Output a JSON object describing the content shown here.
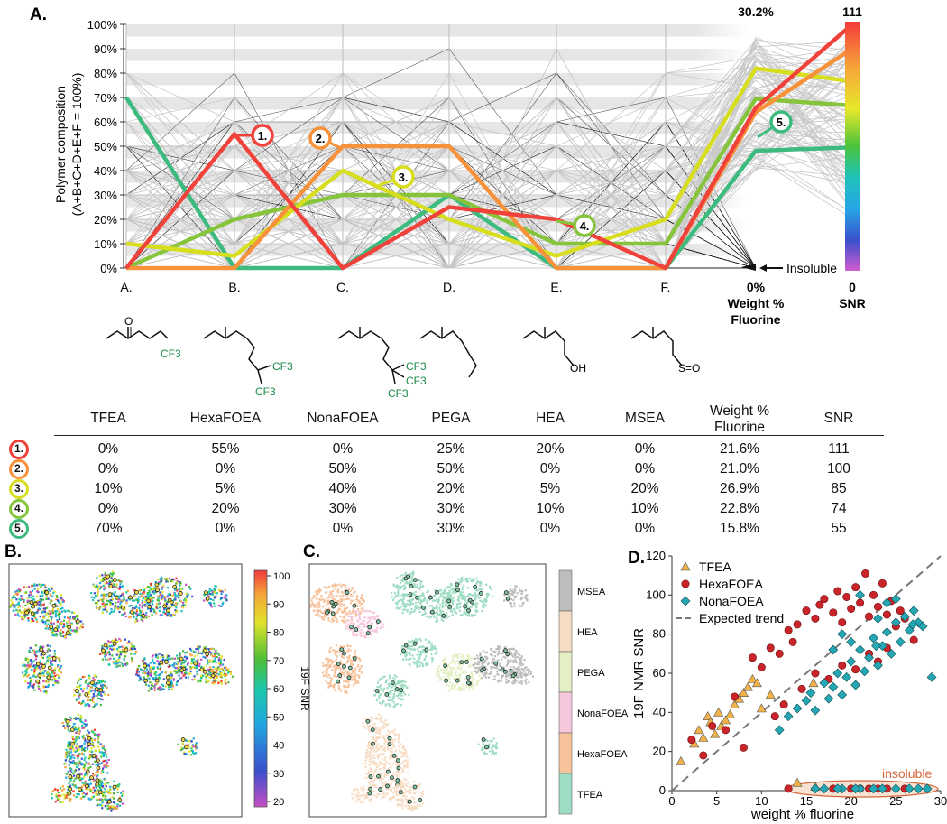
{
  "panel_labels": [
    "A.",
    "B.",
    "C.",
    "D."
  ],
  "chart_data": [
    {
      "type": "parallel-coordinates",
      "panel": "A.",
      "ylabel_line1": "Polymer composition",
      "ylabel_line2": "(A+B+C+D+E+F = 100%)",
      "yticks": [
        "0%",
        "10%",
        "20%",
        "30%",
        "40%",
        "50%",
        "60%",
        "70%",
        "80%",
        "90%",
        "100%"
      ],
      "axes": [
        {
          "label": "A.",
          "monomer": "TFEA"
        },
        {
          "label": "B.",
          "monomer": "HexaFOEA"
        },
        {
          "label": "C.",
          "monomer": "NonaFOEA"
        },
        {
          "label": "D.",
          "monomer": "PEGA"
        },
        {
          "label": "E.",
          "monomer": "HEA"
        },
        {
          "label": "F.",
          "monomer": "MSEA"
        },
        {
          "label": "Weight % Fluorine",
          "min": "0%",
          "max": "30.2%"
        },
        {
          "label": "SNR",
          "min": "0",
          "max": "111"
        }
      ],
      "wf_axis_label_line1": "Weight %",
      "wf_axis_label_line2": "Fluorine",
      "wf_axis_min": "0%",
      "wf_axis_max": "30.2%",
      "snr_axis_label": "SNR",
      "snr_axis_min": "0",
      "snr_axis_max": "111",
      "insoluble_label": "Insoluble",
      "highlighted": [
        {
          "id": "1.",
          "color": "#f0423a",
          "values": [
            0,
            55,
            0,
            25,
            20,
            0,
            21.6,
            111
          ]
        },
        {
          "id": "2.",
          "color": "#f7913a",
          "values": [
            0,
            0,
            50,
            50,
            0,
            0,
            21.0,
            100
          ]
        },
        {
          "id": "3.",
          "color": "#d7de1e",
          "values": [
            10,
            5,
            40,
            20,
            5,
            20,
            26.9,
            85
          ]
        },
        {
          "id": "4.",
          "color": "#86c43c",
          "values": [
            0,
            20,
            30,
            30,
            10,
            10,
            22.8,
            74
          ]
        },
        {
          "id": "5.",
          "color": "#3dbb7e",
          "values": [
            70,
            0,
            0,
            30,
            0,
            0,
            15.8,
            55
          ]
        }
      ]
    },
    {
      "type": "scatter",
      "panel": "D.",
      "xlabel": "weight % fluorine",
      "ylabel": "19F NMR SNR",
      "xlim": [
        0,
        30
      ],
      "ylim": [
        0,
        120
      ],
      "xticks": [
        "0",
        "5",
        "10",
        "15",
        "20",
        "25",
        "30"
      ],
      "yticks": [
        "0",
        "20",
        "40",
        "60",
        "80",
        "100",
        "120"
      ],
      "insoluble_label": "insoluble",
      "legend": [
        "TFEA",
        "HexaFOEA",
        "NonaFOEA",
        "Expected trend"
      ],
      "series": [
        {
          "name": "TFEA",
          "color": "#f2b24a",
          "marker": "triangle",
          "points": [
            [
              1,
              15
            ],
            [
              2.5,
              24
            ],
            [
              3,
              31
            ],
            [
              3.5,
              27
            ],
            [
              4,
              38
            ],
            [
              4.3,
              35
            ],
            [
              4.8,
              29
            ],
            [
              5.2,
              40
            ],
            [
              5.5,
              33
            ],
            [
              6,
              36
            ],
            [
              6.5,
              39
            ],
            [
              7,
              44
            ],
            [
              7.5,
              47
            ],
            [
              8,
              50
            ],
            [
              8.5,
              53
            ],
            [
              9,
              57
            ],
            [
              9.5,
              55
            ],
            [
              10,
              42
            ],
            [
              11,
              49
            ],
            [
              15.8,
              55
            ],
            [
              14,
              4
            ],
            [
              16,
              2
            ]
          ]
        },
        {
          "name": "HexaFOEA",
          "color": "#c8242a",
          "marker": "circle",
          "points": [
            [
              2.2,
              26
            ],
            [
              3.5,
              18
            ],
            [
              4.5,
              33
            ],
            [
              6,
              31
            ],
            [
              7,
              48
            ],
            [
              8,
              22
            ],
            [
              9,
              68
            ],
            [
              10,
              63
            ],
            [
              11,
              73
            ],
            [
              12,
              70
            ],
            [
              13,
              82
            ],
            [
              13.5,
              76
            ],
            [
              14,
              85
            ],
            [
              15,
              92
            ],
            [
              16,
              88
            ],
            [
              16.5,
              95
            ],
            [
              17,
              98
            ],
            [
              18,
              91
            ],
            [
              18.5,
              102
            ],
            [
              19,
              86
            ],
            [
              19.5,
              99
            ],
            [
              20,
              93
            ],
            [
              20.5,
              104
            ],
            [
              21,
              96
            ],
            [
              21.6,
              111
            ],
            [
              22,
              89
            ],
            [
              22.5,
              100
            ],
            [
              23,
              94
            ],
            [
              23.5,
              106
            ],
            [
              24,
              90
            ],
            [
              24.5,
              97
            ],
            [
              25,
              84
            ],
            [
              25.5,
              92
            ],
            [
              26,
              88
            ],
            [
              27,
              77
            ],
            [
              12.5,
              44
            ],
            [
              14.5,
              52
            ],
            [
              16,
              60
            ],
            [
              17.5,
              57
            ],
            [
              19,
              64
            ],
            [
              20.5,
              62
            ],
            [
              22,
              70
            ],
            [
              23,
              66
            ],
            [
              24,
              73
            ],
            [
              11.5,
              38
            ],
            [
              13,
              1
            ],
            [
              18,
              1
            ],
            [
              20,
              1
            ],
            [
              22,
              1
            ],
            [
              24,
              1
            ],
            [
              26,
              1
            ],
            [
              21,
              1
            ],
            [
              23,
              1
            ]
          ]
        },
        {
          "name": "NonaFOEA",
          "color": "#25a6b3",
          "marker": "diamond",
          "points": [
            [
              12,
              31
            ],
            [
              13,
              38
            ],
            [
              14,
              42
            ],
            [
              15,
              46
            ],
            [
              15.5,
              50
            ],
            [
              16,
              41
            ],
            [
              17,
              55
            ],
            [
              17.5,
              47
            ],
            [
              18,
              53
            ],
            [
              18.5,
              60
            ],
            [
              19,
              49
            ],
            [
              19.5,
              58
            ],
            [
              20,
              66
            ],
            [
              20.5,
              54
            ],
            [
              21,
              72
            ],
            [
              21.5,
              61
            ],
            [
              22,
              68
            ],
            [
              22.5,
              78
            ],
            [
              23,
              64
            ],
            [
              23.5,
              74
            ],
            [
              24,
              81
            ],
            [
              24.5,
              70
            ],
            [
              25,
              86
            ],
            [
              25.5,
              76
            ],
            [
              26,
              89
            ],
            [
              26.5,
              82
            ],
            [
              27,
              92
            ],
            [
              27.5,
              86
            ],
            [
              28,
              84
            ],
            [
              29,
              58
            ],
            [
              21,
              100
            ],
            [
              22.8,
              74
            ],
            [
              26.9,
              85
            ],
            [
              18,
              72
            ],
            [
              19,
              80
            ],
            [
              20,
              76
            ],
            [
              24,
              96
            ],
            [
              25,
              98
            ],
            [
              23,
              88
            ],
            [
              17,
              1
            ],
            [
              19,
              1
            ],
            [
              21,
              1
            ],
            [
              22.5,
              1
            ],
            [
              23.5,
              1
            ],
            [
              25,
              1
            ],
            [
              26.5,
              1
            ],
            [
              27.5,
              1
            ],
            [
              28.5,
              1
            ],
            [
              20.5,
              1
            ],
            [
              16,
              1
            ],
            [
              18.5,
              1
            ]
          ]
        }
      ]
    }
  ],
  "table": {
    "headers": [
      "TFEA",
      "HexaFOEA",
      "NonaFOEA",
      "PEGA",
      "HEA",
      "MSEA",
      "Weight %",
      "SNR"
    ],
    "header_wf_line2": "Fluorine",
    "rows": [
      {
        "id": "1.",
        "color": "#f0423a",
        "cells": [
          "0%",
          "55%",
          "0%",
          "25%",
          "20%",
          "0%",
          "21.6%",
          "111"
        ]
      },
      {
        "id": "2.",
        "color": "#f7913a",
        "cells": [
          "0%",
          "0%",
          "50%",
          "50%",
          "0%",
          "0%",
          "21.0%",
          "100"
        ]
      },
      {
        "id": "3.",
        "color": "#d7de1e",
        "cells": [
          "10%",
          "5%",
          "40%",
          "20%",
          "5%",
          "20%",
          "26.9%",
          "85"
        ]
      },
      {
        "id": "4.",
        "color": "#86c43c",
        "cells": [
          "0%",
          "20%",
          "30%",
          "30%",
          "10%",
          "10%",
          "22.8%",
          "74"
        ]
      },
      {
        "id": "5.",
        "color": "#3dbb7e",
        "cells": [
          "70%",
          "0%",
          "0%",
          "30%",
          "0%",
          "0%",
          "15.8%",
          "55"
        ]
      }
    ]
  },
  "structures": {
    "a_group": "CF3",
    "b_group1": "CF3",
    "b_group2": "CF3",
    "c_group1": "CF3",
    "c_group2": "CF3",
    "c_group3": "CF3",
    "e_group": "OH",
    "f_group": "S=O"
  },
  "panel_b": {
    "colorbar_label": "19F SNR",
    "colorbar_ticks": [
      "20",
      "30",
      "40",
      "50",
      "60",
      "70",
      "80",
      "90",
      "100"
    ]
  },
  "panel_c": {
    "legend": [
      "MSEA",
      "HEA",
      "PEGA",
      "NonaFOEA",
      "HexaFOEA",
      "TFEA"
    ],
    "legend_colors": [
      "#bdbdbd",
      "#f7dcc4",
      "#e4efc4",
      "#f7c8dd",
      "#f6c29b",
      "#9fdcc4"
    ]
  }
}
